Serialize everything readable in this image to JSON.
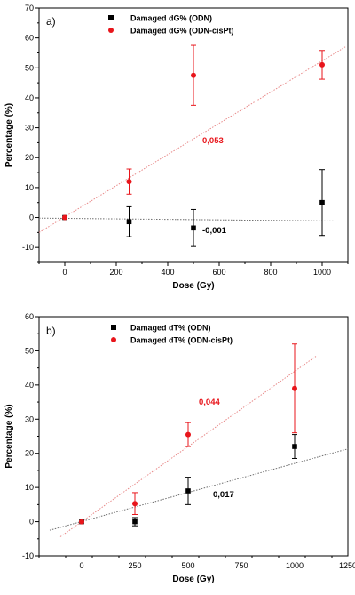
{
  "chart_data": [
    {
      "type": "scatter",
      "panel_label": "a)",
      "xlabel": "Dose (Gy)",
      "ylabel": "Percentage (%)",
      "xlim": [
        -100,
        1100
      ],
      "ylim": [
        -15,
        70
      ],
      "xticks": [
        0,
        200,
        400,
        600,
        800,
        1000
      ],
      "yticks": [
        -10,
        0,
        10,
        20,
        30,
        40,
        50,
        60,
        70
      ],
      "legend_position": "top-center",
      "series": [
        {
          "name": "Damaged dG% (ODN)",
          "marker": "square",
          "color": "#000000",
          "x": [
            0,
            250,
            500,
            1000
          ],
          "y": [
            0,
            -1.4,
            -3.5,
            5
          ],
          "yerr": [
            0,
            5,
            6.2,
            11
          ],
          "fit_slope": "-0,001",
          "fit_line": [
            [
              -100,
              -0.2
            ],
            [
              1090,
              -1.2
            ]
          ],
          "fit_color": "#6f6f6f"
        },
        {
          "name": "Damaged dG% (ODN-cisPt)",
          "marker": "circle",
          "color": "#e8151b",
          "x": [
            0,
            250,
            500,
            1000
          ],
          "y": [
            0,
            12,
            47.5,
            51
          ],
          "yerr": [
            0,
            4.2,
            10,
            4.8
          ],
          "fit_slope": "0,053",
          "fit_line": [
            [
              -100,
              -5
            ],
            [
              1090,
              57
            ]
          ],
          "fit_color": "#e88a8a"
        }
      ]
    },
    {
      "type": "scatter",
      "panel_label": "b)",
      "xlabel": "Dose (Gy)",
      "ylabel": "Percentage (%)",
      "xlim": [
        -200,
        1250
      ],
      "ylim": [
        -10,
        60
      ],
      "xticks": [
        0,
        250,
        500,
        750,
        1000,
        1250
      ],
      "yticks": [
        -10,
        0,
        10,
        20,
        30,
        40,
        50,
        60
      ],
      "legend_position": "top-center",
      "series": [
        {
          "name": "Damaged dT% (ODN)",
          "marker": "square",
          "color": "#000000",
          "x": [
            0,
            250,
            500,
            1000
          ],
          "y": [
            0,
            0,
            9,
            22
          ],
          "yerr": [
            0,
            1.2,
            4,
            3.5
          ],
          "fit_slope": "0,017",
          "fit_line": [
            [
              -150,
              -2.5
            ],
            [
              1250,
              21.3
            ]
          ],
          "fit_color": "#6f6f6f"
        },
        {
          "name": "Damaged dT% (ODN-cisPt)",
          "marker": "circle",
          "color": "#e8151b",
          "x": [
            0,
            250,
            500,
            1000
          ],
          "y": [
            0,
            5.3,
            25.5,
            39
          ],
          "yerr": [
            0,
            3.2,
            3.5,
            13
          ],
          "fit_slope": "0,044",
          "fit_line": [
            [
              -100,
              -4.4
            ],
            [
              1100,
              48.4
            ]
          ],
          "fit_color": "#e88a8a"
        }
      ]
    }
  ]
}
